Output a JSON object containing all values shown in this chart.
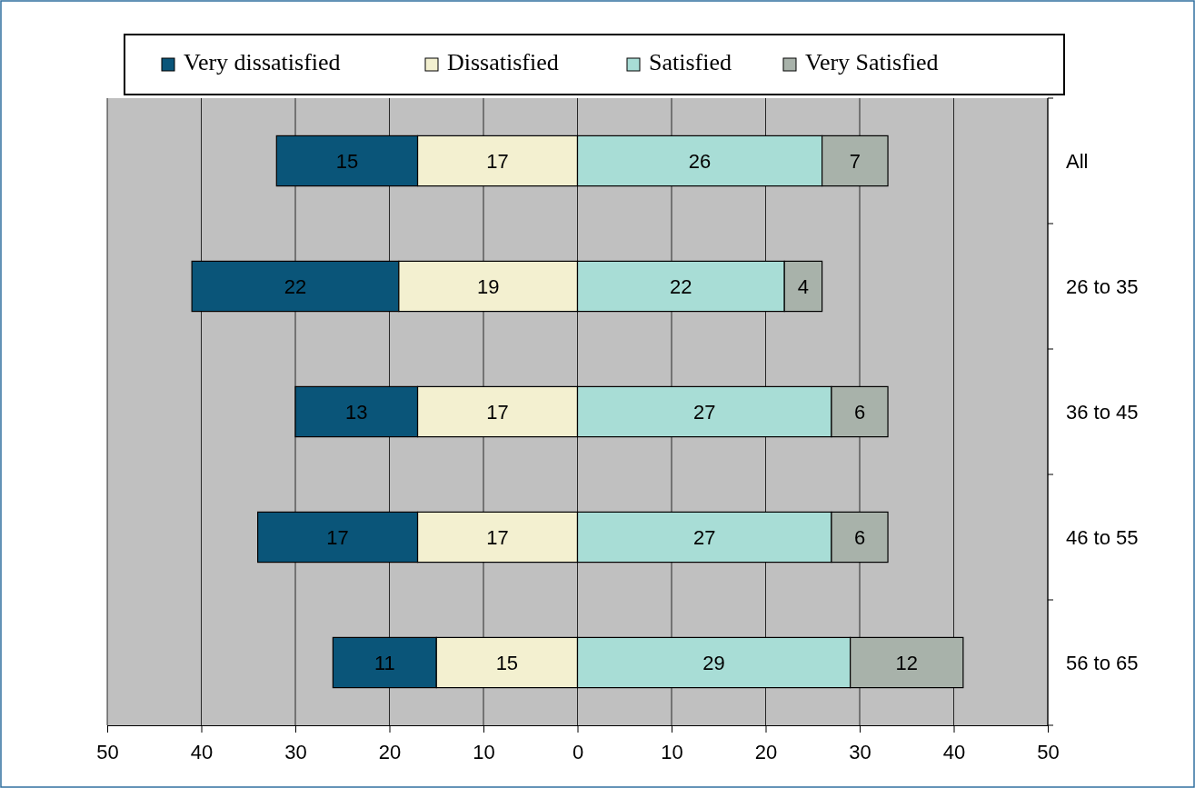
{
  "chart_data": {
    "type": "bar",
    "orientation": "horizontal",
    "categories": [
      "All",
      "26 to 35",
      "36 to 45",
      "46 to 55",
      "56 to 65"
    ],
    "series": [
      {
        "name": "Very dissatisfied",
        "color": "#0a5579",
        "base": [
          -32,
          -41,
          -30,
          -34,
          -26
        ],
        "values": [
          15,
          22,
          13,
          17,
          11
        ]
      },
      {
        "name": "Dissatisfied",
        "color": "#f3f0d0",
        "base": [
          -17,
          -19,
          -17,
          -17,
          -15
        ],
        "values": [
          17,
          19,
          17,
          17,
          15
        ]
      },
      {
        "name": "Satisfied",
        "color": "#a8ddd6",
        "base": [
          0,
          0,
          0,
          0,
          0
        ],
        "values": [
          26,
          22,
          27,
          27,
          29
        ]
      },
      {
        "name": "Very Satisfied",
        "color": "#a8b2aa",
        "base": [
          26,
          22,
          27,
          27,
          29
        ],
        "values": [
          7,
          4,
          6,
          6,
          12
        ]
      }
    ],
    "data_labels": true,
    "xlim": [
      -50,
      50
    ],
    "xticks": [
      {
        "value": -50,
        "label": "50"
      },
      {
        "value": -40,
        "label": "40"
      },
      {
        "value": -30,
        "label": "30"
      },
      {
        "value": -20,
        "label": "20"
      },
      {
        "value": -10,
        "label": "10"
      },
      0,
      10,
      20,
      30,
      40,
      50
    ],
    "grid": "x",
    "legend": "top"
  }
}
